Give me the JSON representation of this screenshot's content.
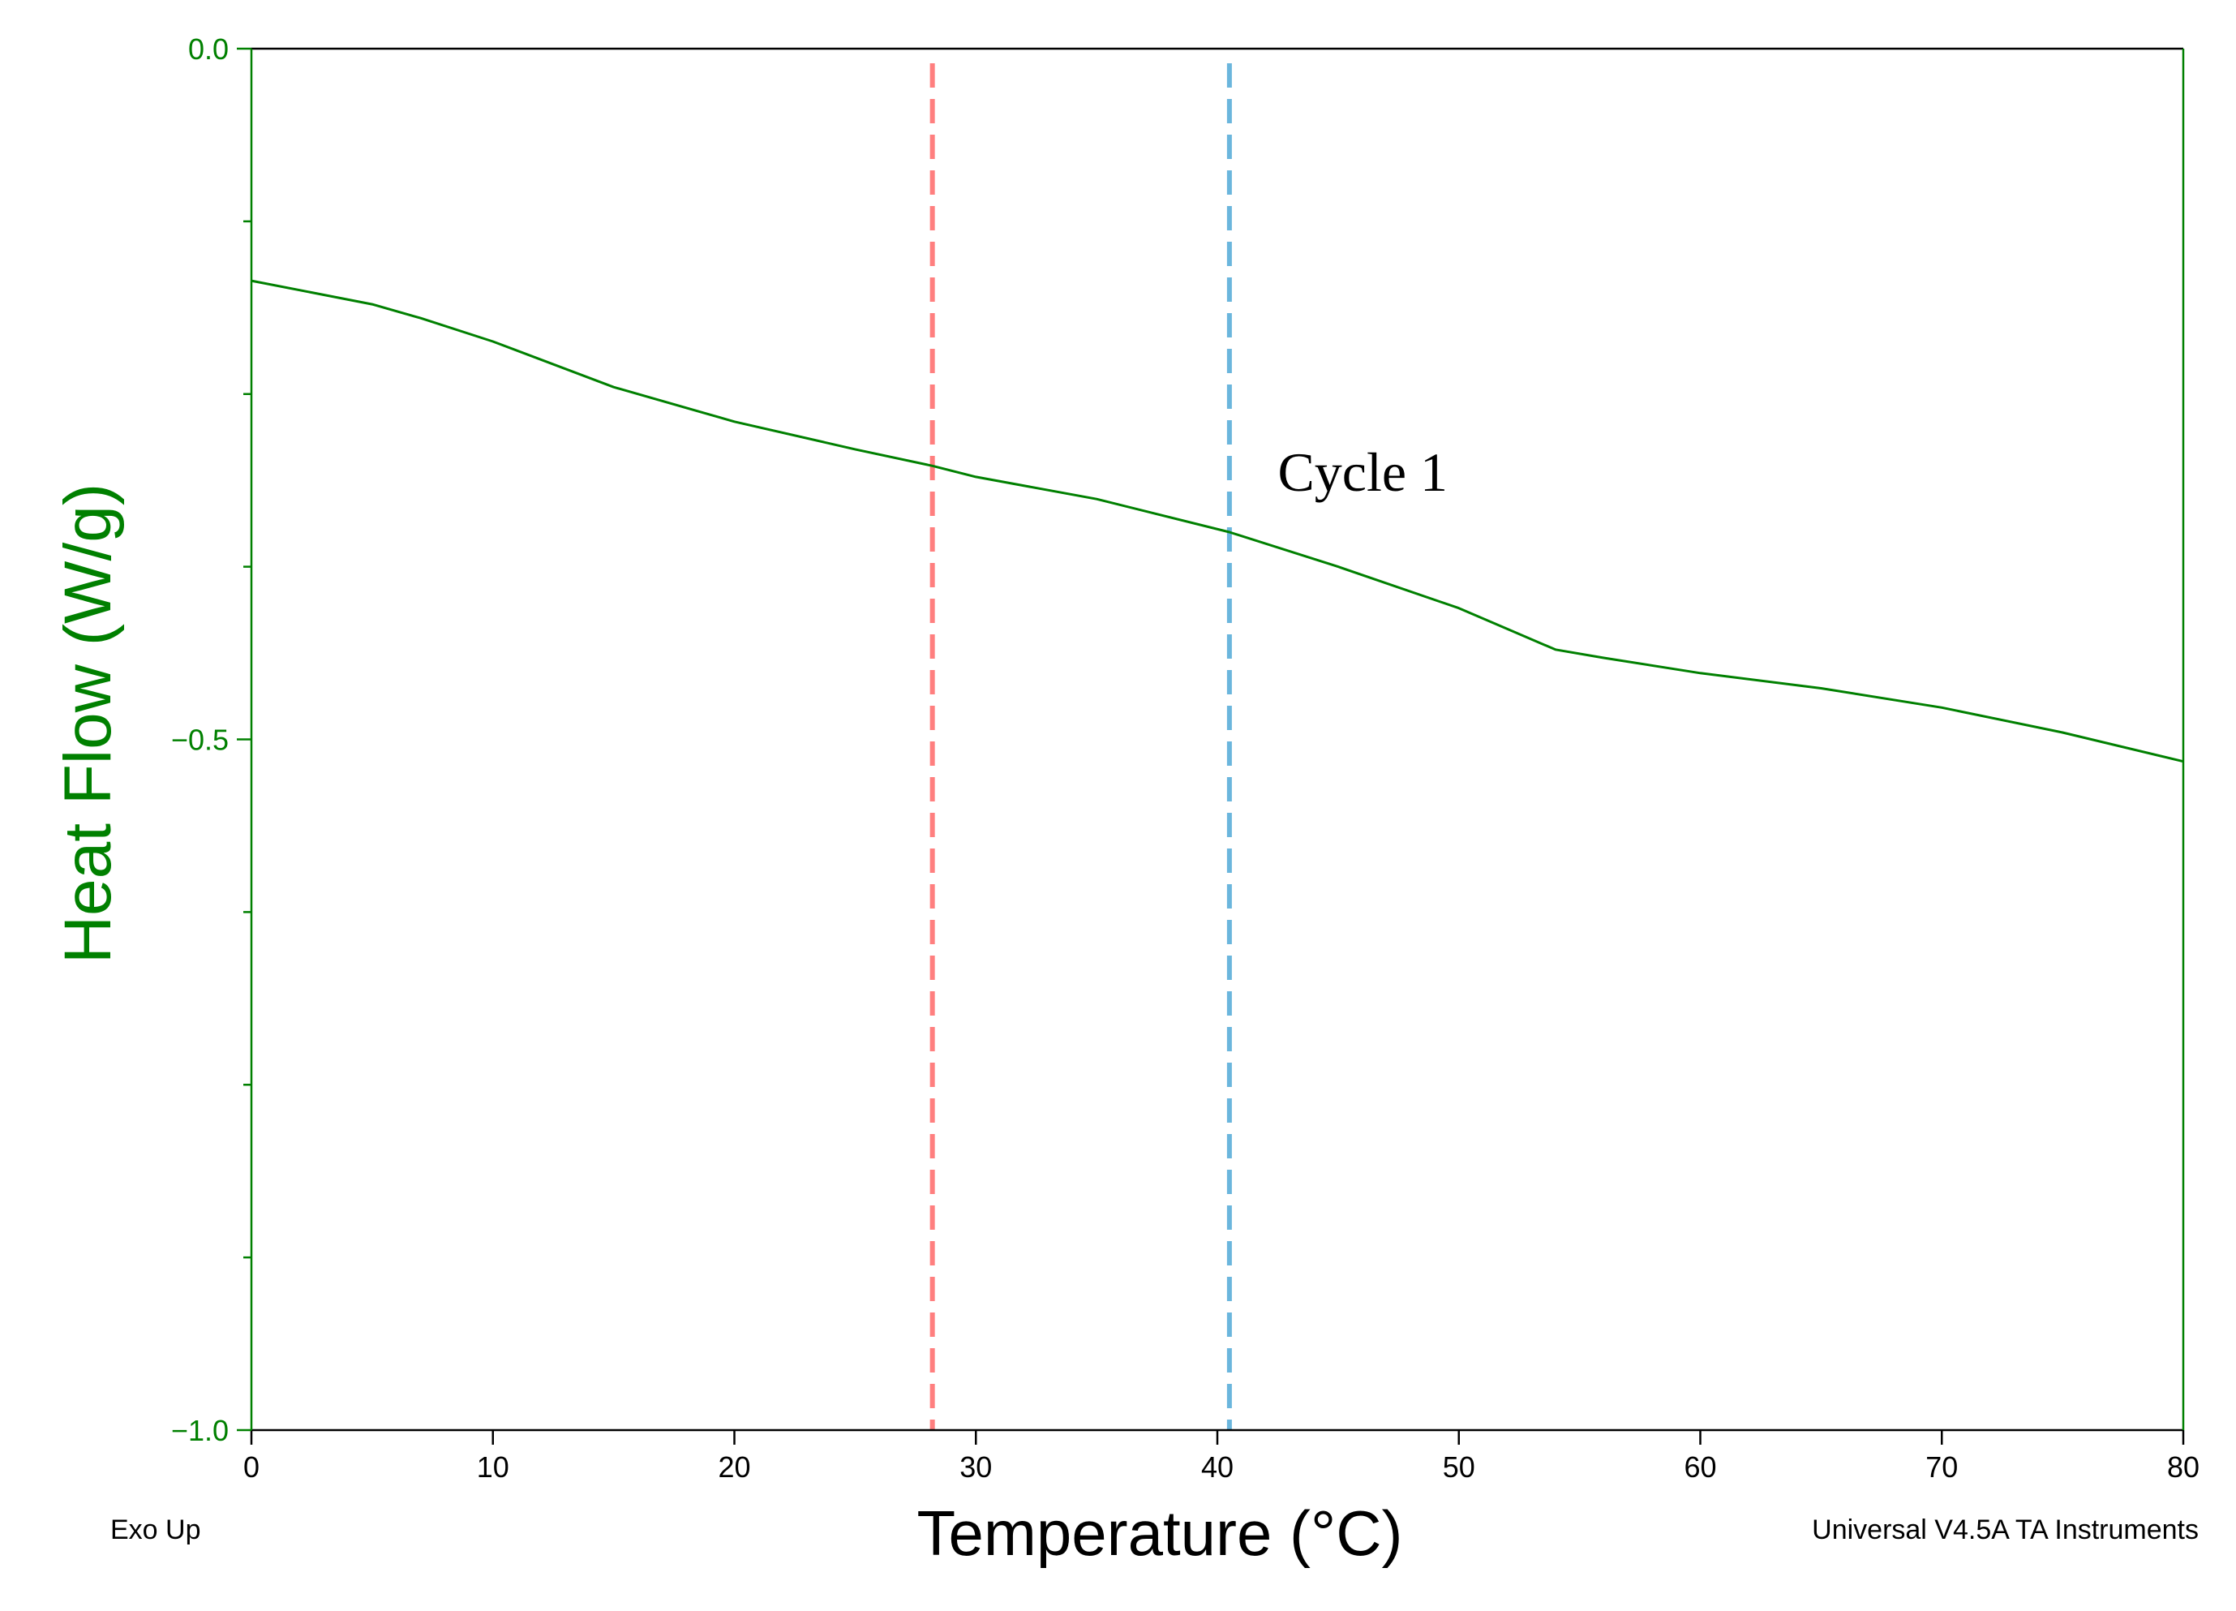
{
  "chart_data": {
    "type": "line",
    "title": "",
    "xlabel": "Temperature (°C)",
    "ylabel": "Heat Flow (W/g)",
    "xlim": [
      0,
      80
    ],
    "ylim": [
      -1.0,
      0.0
    ],
    "x_ticks": [
      0,
      10,
      20,
      30,
      40,
      50,
      60,
      70,
      80
    ],
    "x_tick_labels": [
      "0",
      "10",
      "20",
      "30",
      "40",
      "50",
      "60",
      "70",
      "80"
    ],
    "y_ticks": [
      0.0,
      -0.5,
      -1.0
    ],
    "y_tick_labels": [
      "0.0",
      "−0.5",
      "−1.0"
    ],
    "y_minor_ticks": [
      -0.125,
      -0.25,
      -0.375,
      -0.625,
      -0.75,
      -0.875
    ],
    "grid": false,
    "series": [
      {
        "name": "Cycle 1",
        "color": "#008000",
        "x": [
          0,
          5,
          7,
          10,
          15,
          20,
          25,
          28.2,
          30,
          35,
          40.5,
          45,
          50,
          52,
          54,
          56,
          60,
          65,
          70,
          75,
          80
        ],
        "y": [
          -0.168,
          -0.185,
          -0.195,
          -0.212,
          -0.245,
          -0.27,
          -0.29,
          -0.302,
          -0.31,
          -0.326,
          -0.35,
          -0.375,
          -0.405,
          -0.42,
          -0.435,
          -0.441,
          -0.452,
          -0.463,
          -0.477,
          -0.495,
          -0.516
        ]
      }
    ],
    "vertical_lines": [
      {
        "x": 28.2,
        "color": "#ff7f7f",
        "style": "dashed"
      },
      {
        "x": 40.5,
        "color": "#6bb6dd",
        "style": "dashed"
      }
    ],
    "annotations": [
      {
        "text": "Cycle 1",
        "x": 42.5,
        "y": -0.32
      }
    ],
    "colors": {
      "axis_left": "#008000",
      "axis_bottom": "#000000",
      "axis_right": "#008000"
    }
  },
  "footer": {
    "exo_label": "Exo Up",
    "software_label": "Universal V4.5A TA Instruments"
  }
}
